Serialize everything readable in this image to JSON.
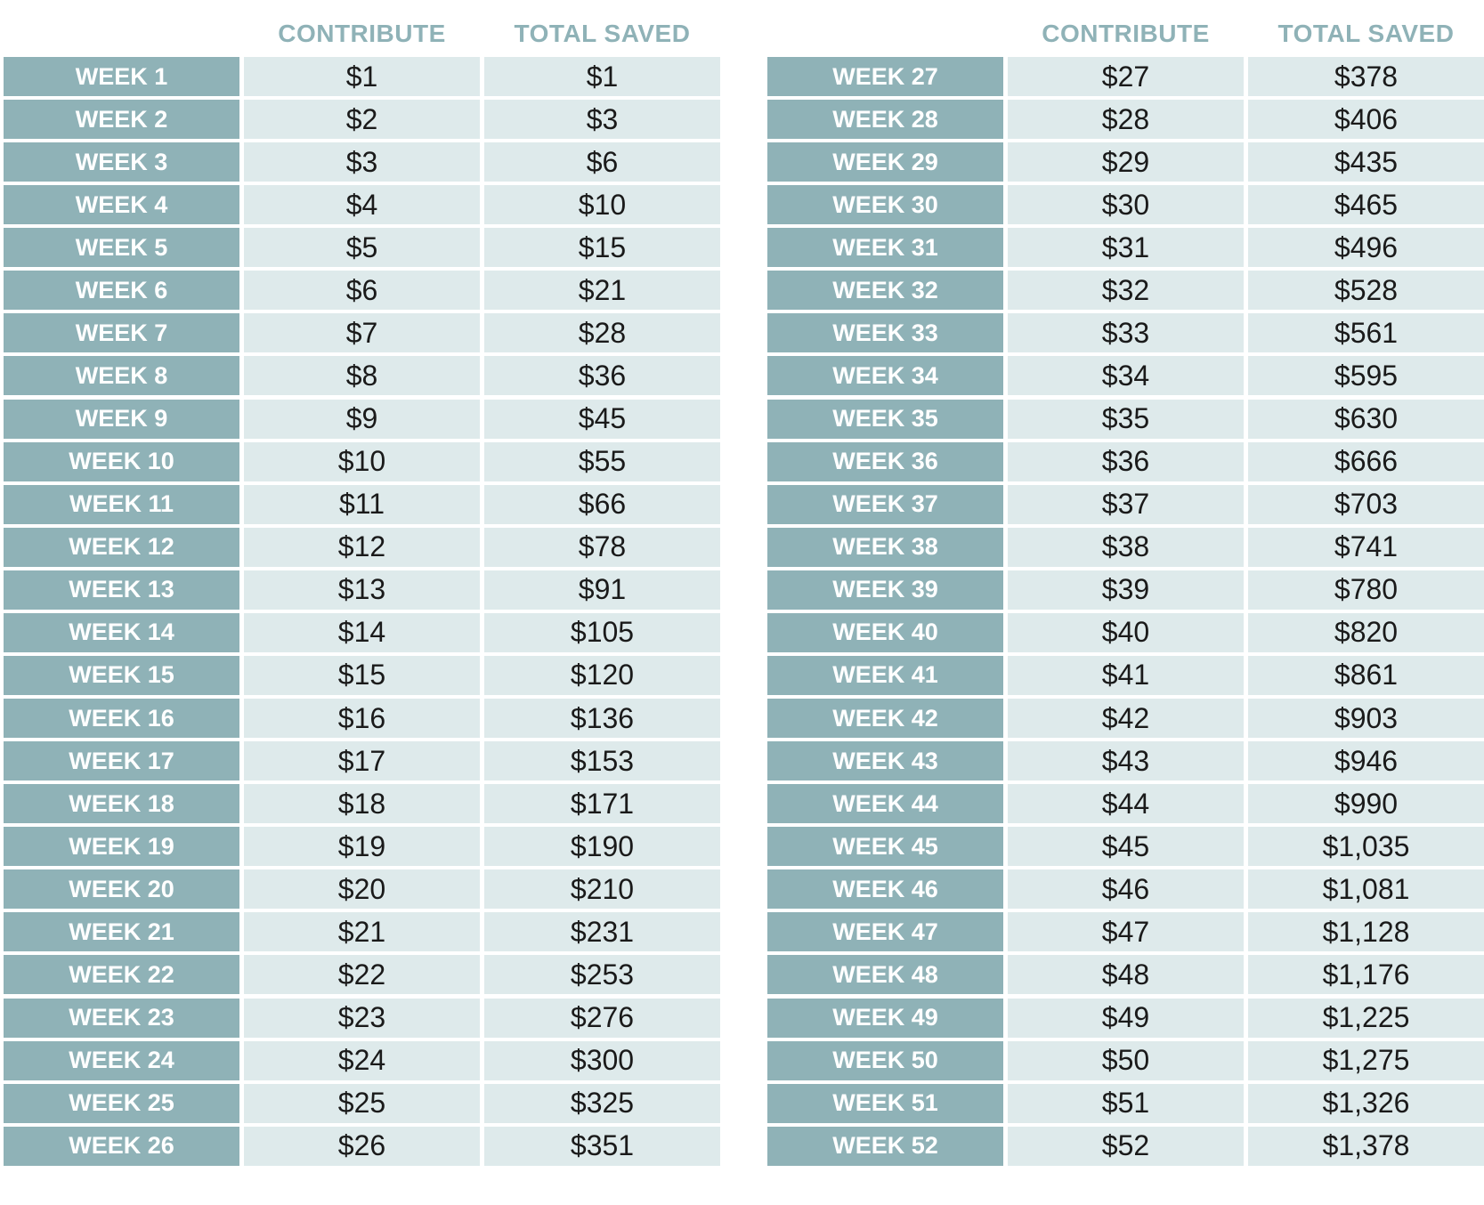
{
  "tables": [
    {
      "headers": [
        "CONTRIBUTE",
        "TOTAL SAVED"
      ],
      "rows": [
        [
          "WEEK 1",
          "$1",
          "$1"
        ],
        [
          "WEEK 2",
          "$2",
          "$3"
        ],
        [
          "WEEK 3",
          "$3",
          "$6"
        ],
        [
          "WEEK 4",
          "$4",
          "$10"
        ],
        [
          "WEEK 5",
          "$5",
          "$15"
        ],
        [
          "WEEK 6",
          "$6",
          "$21"
        ],
        [
          "WEEK 7",
          "$7",
          "$28"
        ],
        [
          "WEEK 8",
          "$8",
          "$36"
        ],
        [
          "WEEK 9",
          "$9",
          "$45"
        ],
        [
          "WEEK 10",
          "$10",
          "$55"
        ],
        [
          "WEEK 11",
          "$11",
          "$66"
        ],
        [
          "WEEK 12",
          "$12",
          "$78"
        ],
        [
          "WEEK 13",
          "$13",
          "$91"
        ],
        [
          "WEEK 14",
          "$14",
          "$105"
        ],
        [
          "WEEK 15",
          "$15",
          "$120"
        ],
        [
          "WEEK 16",
          "$16",
          "$136"
        ],
        [
          "WEEK 17",
          "$17",
          "$153"
        ],
        [
          "WEEK 18",
          "$18",
          "$171"
        ],
        [
          "WEEK 19",
          "$19",
          "$190"
        ],
        [
          "WEEK 20",
          "$20",
          "$210"
        ],
        [
          "WEEK 21",
          "$21",
          "$231"
        ],
        [
          "WEEK 22",
          "$22",
          "$253"
        ],
        [
          "WEEK 23",
          "$23",
          "$276"
        ],
        [
          "WEEK 24",
          "$24",
          "$300"
        ],
        [
          "WEEK 25",
          "$25",
          "$325"
        ],
        [
          "WEEK 26",
          "$26",
          "$351"
        ]
      ]
    },
    {
      "headers": [
        "CONTRIBUTE",
        "TOTAL SAVED"
      ],
      "rows": [
        [
          "WEEK 27",
          "$27",
          "$378"
        ],
        [
          "WEEK 28",
          "$28",
          "$406"
        ],
        [
          "WEEK 29",
          "$29",
          "$435"
        ],
        [
          "WEEK 30",
          "$30",
          "$465"
        ],
        [
          "WEEK 31",
          "$31",
          "$496"
        ],
        [
          "WEEK 32",
          "$32",
          "$528"
        ],
        [
          "WEEK 33",
          "$33",
          "$561"
        ],
        [
          "WEEK 34",
          "$34",
          "$595"
        ],
        [
          "WEEK 35",
          "$35",
          "$630"
        ],
        [
          "WEEK 36",
          "$36",
          "$666"
        ],
        [
          "WEEK 37",
          "$37",
          "$703"
        ],
        [
          "WEEK 38",
          "$38",
          "$741"
        ],
        [
          "WEEK 39",
          "$39",
          "$780"
        ],
        [
          "WEEK 40",
          "$40",
          "$820"
        ],
        [
          "WEEK 41",
          "$41",
          "$861"
        ],
        [
          "WEEK 42",
          "$42",
          "$903"
        ],
        [
          "WEEK 43",
          "$43",
          "$946"
        ],
        [
          "WEEK 44",
          "$44",
          "$990"
        ],
        [
          "WEEK 45",
          "$45",
          "$1,035"
        ],
        [
          "WEEK 46",
          "$46",
          "$1,081"
        ],
        [
          "WEEK 47",
          "$47",
          "$1,128"
        ],
        [
          "WEEK 48",
          "$48",
          "$1,176"
        ],
        [
          "WEEK 49",
          "$49",
          "$1,225"
        ],
        [
          "WEEK 50",
          "$50",
          "$1,275"
        ],
        [
          "WEEK 51",
          "$51",
          "$1,326"
        ],
        [
          "WEEK 52",
          "$52",
          "$1,378"
        ]
      ]
    }
  ]
}
